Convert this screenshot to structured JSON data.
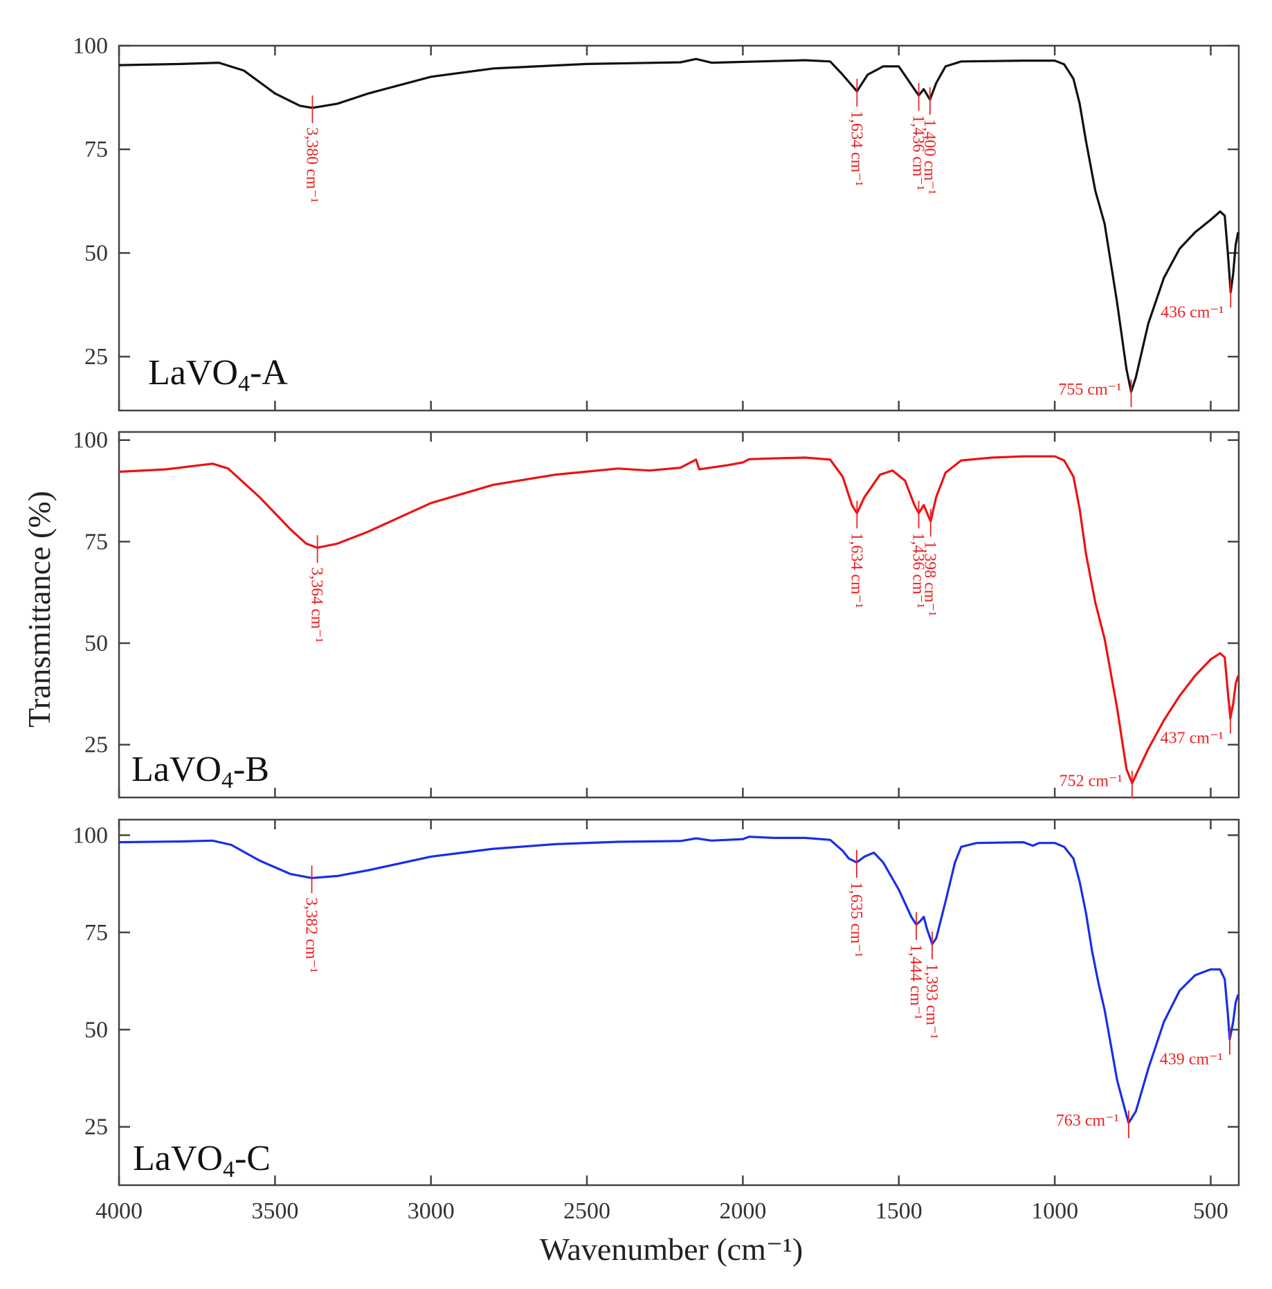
{
  "chart_data": {
    "type": "line",
    "xlabel": "Wavenumber (cm⁻¹)",
    "ylabel": "Transmittance (%)",
    "xlim": [
      4000,
      410
    ],
    "x_ticks": [
      "4000",
      "3500",
      "3000",
      "2500",
      "2000",
      "1500",
      "1000",
      "500"
    ],
    "x_tick_values": [
      4000,
      3500,
      3000,
      2500,
      2000,
      1500,
      1000,
      500
    ],
    "peak_color": "#ee2222",
    "panels": [
      {
        "name": "LaVO₄-A",
        "label_main": "LaVO",
        "label_sub": "4",
        "label_suffix": "-A",
        "color": "#111111",
        "ylim": [
          12,
          100
        ],
        "y_ticks": [
          "100",
          "75",
          "50",
          "25"
        ],
        "y_tick_values": [
          100,
          75,
          50,
          25
        ],
        "baseline": 96,
        "points": [
          [
            4000,
            95.3
          ],
          [
            3800,
            95.6
          ],
          [
            3680,
            95.9
          ],
          [
            3600,
            94
          ],
          [
            3500,
            88.5
          ],
          [
            3420,
            85.5
          ],
          [
            3380,
            85
          ],
          [
            3300,
            86
          ],
          [
            3200,
            88.5
          ],
          [
            3000,
            92.5
          ],
          [
            2800,
            94.5
          ],
          [
            2500,
            95.6
          ],
          [
            2200,
            96
          ],
          [
            2150,
            96.8
          ],
          [
            2100,
            95.9
          ],
          [
            2050,
            96
          ],
          [
            2000,
            96.1
          ],
          [
            1900,
            96.3
          ],
          [
            1800,
            96.5
          ],
          [
            1720,
            96.2
          ],
          [
            1680,
            93
          ],
          [
            1634,
            89
          ],
          [
            1600,
            93
          ],
          [
            1550,
            95
          ],
          [
            1500,
            95
          ],
          [
            1450,
            89.5
          ],
          [
            1436,
            88
          ],
          [
            1420,
            89.5
          ],
          [
            1400,
            87
          ],
          [
            1380,
            91
          ],
          [
            1350,
            95
          ],
          [
            1300,
            96.2
          ],
          [
            1100,
            96.4
          ],
          [
            1000,
            96.4
          ],
          [
            970,
            95.5
          ],
          [
            940,
            92
          ],
          [
            920,
            86
          ],
          [
            900,
            77
          ],
          [
            870,
            65
          ],
          [
            840,
            57
          ],
          [
            800,
            38
          ],
          [
            770,
            22
          ],
          [
            755,
            16.5
          ],
          [
            740,
            20
          ],
          [
            700,
            33
          ],
          [
            650,
            44
          ],
          [
            600,
            51
          ],
          [
            550,
            55
          ],
          [
            500,
            58
          ],
          [
            470,
            60
          ],
          [
            455,
            59
          ],
          [
            445,
            50
          ],
          [
            436,
            40.5
          ],
          [
            428,
            45
          ],
          [
            420,
            52
          ],
          [
            412,
            55
          ]
        ],
        "peaks": [
          {
            "label": "3,380 cm⁻¹",
            "x": 3380,
            "y": 85,
            "vertical": true
          },
          {
            "label": "1,634 cm⁻¹",
            "x": 1634,
            "y": 89,
            "vertical": true
          },
          {
            "label": "1,436 cm⁻¹",
            "x": 1436,
            "y": 88,
            "vertical": true
          },
          {
            "label": "1,400 cm⁻¹",
            "x": 1400,
            "y": 87,
            "vertical": true
          },
          {
            "label": "755 cm⁻¹",
            "x": 755,
            "y": 16.5,
            "vertical": false
          },
          {
            "label": "436 cm⁻¹",
            "x": 436,
            "y": 40.5,
            "vertical": false
          }
        ]
      },
      {
        "name": "LaVO₄-B",
        "label_main": "LaVO",
        "label_sub": "4",
        "label_suffix": "-B",
        "color": "#ee1111",
        "ylim": [
          12,
          102
        ],
        "y_ticks": [
          "100",
          "75",
          "50",
          "25"
        ],
        "y_tick_values": [
          100,
          75,
          50,
          25
        ],
        "baseline": 95,
        "points": [
          [
            4000,
            92.2
          ],
          [
            3850,
            92.8
          ],
          [
            3700,
            94.2
          ],
          [
            3650,
            93
          ],
          [
            3550,
            86
          ],
          [
            3450,
            78
          ],
          [
            3400,
            74.5
          ],
          [
            3364,
            73.5
          ],
          [
            3300,
            74.5
          ],
          [
            3200,
            77.5
          ],
          [
            3000,
            84.5
          ],
          [
            2800,
            89
          ],
          [
            2600,
            91.5
          ],
          [
            2400,
            93
          ],
          [
            2300,
            92.5
          ],
          [
            2200,
            93.2
          ],
          [
            2150,
            95.2
          ],
          [
            2140,
            92.8
          ],
          [
            2050,
            93.8
          ],
          [
            2000,
            94.5
          ],
          [
            1980,
            95.3
          ],
          [
            1900,
            95.5
          ],
          [
            1800,
            95.7
          ],
          [
            1720,
            95.2
          ],
          [
            1680,
            91
          ],
          [
            1650,
            84
          ],
          [
            1634,
            82
          ],
          [
            1610,
            86
          ],
          [
            1560,
            91.5
          ],
          [
            1520,
            92.5
          ],
          [
            1480,
            90
          ],
          [
            1450,
            84
          ],
          [
            1436,
            82
          ],
          [
            1420,
            84
          ],
          [
            1398,
            80
          ],
          [
            1380,
            86
          ],
          [
            1350,
            92
          ],
          [
            1300,
            95
          ],
          [
            1200,
            95.7
          ],
          [
            1100,
            96
          ],
          [
            1000,
            96
          ],
          [
            970,
            95
          ],
          [
            940,
            91
          ],
          [
            920,
            83
          ],
          [
            900,
            72
          ],
          [
            870,
            60
          ],
          [
            840,
            51
          ],
          [
            800,
            34
          ],
          [
            770,
            19
          ],
          [
            752,
            15.5
          ],
          [
            740,
            17.5
          ],
          [
            700,
            24
          ],
          [
            650,
            31
          ],
          [
            600,
            37
          ],
          [
            550,
            42
          ],
          [
            500,
            46
          ],
          [
            470,
            47.5
          ],
          [
            455,
            46.5
          ],
          [
            445,
            38
          ],
          [
            437,
            31.5
          ],
          [
            428,
            35
          ],
          [
            420,
            40
          ],
          [
            412,
            42
          ]
        ],
        "peaks": [
          {
            "label": "3,364 cm⁻¹",
            "x": 3364,
            "y": 73.5,
            "vertical": true
          },
          {
            "label": "1,634 cm⁻¹",
            "x": 1634,
            "y": 82,
            "vertical": true
          },
          {
            "label": "1,436 cm⁻¹",
            "x": 1436,
            "y": 82,
            "vertical": true
          },
          {
            "label": "1,398 cm⁻¹",
            "x": 1398,
            "y": 80,
            "vertical": true
          },
          {
            "label": "752 cm⁻¹",
            "x": 752,
            "y": 15.5,
            "vertical": false
          },
          {
            "label": "437 cm⁻¹",
            "x": 437,
            "y": 31.5,
            "vertical": false
          }
        ]
      },
      {
        "name": "LaVO₄-C",
        "label_main": "LaVO",
        "label_sub": "4",
        "label_suffix": "-C",
        "color": "#1a2ee6",
        "ylim": [
          10,
          104
        ],
        "y_ticks": [
          "100",
          "75",
          "50",
          "25"
        ],
        "y_tick_values": [
          100,
          75,
          50,
          25
        ],
        "baseline": 98,
        "points": [
          [
            4000,
            98.2
          ],
          [
            3800,
            98.4
          ],
          [
            3700,
            98.6
          ],
          [
            3640,
            97.5
          ],
          [
            3550,
            93.5
          ],
          [
            3450,
            90
          ],
          [
            3382,
            89
          ],
          [
            3300,
            89.5
          ],
          [
            3200,
            91
          ],
          [
            3000,
            94.5
          ],
          [
            2800,
            96.5
          ],
          [
            2600,
            97.7
          ],
          [
            2400,
            98.3
          ],
          [
            2200,
            98.5
          ],
          [
            2150,
            99.2
          ],
          [
            2100,
            98.6
          ],
          [
            2000,
            99
          ],
          [
            1980,
            99.6
          ],
          [
            1900,
            99.3
          ],
          [
            1800,
            99.3
          ],
          [
            1720,
            98.8
          ],
          [
            1680,
            96
          ],
          [
            1660,
            94
          ],
          [
            1635,
            93
          ],
          [
            1610,
            94.5
          ],
          [
            1580,
            95.5
          ],
          [
            1550,
            93
          ],
          [
            1500,
            86
          ],
          [
            1460,
            79
          ],
          [
            1444,
            77
          ],
          [
            1430,
            78
          ],
          [
            1420,
            79
          ],
          [
            1410,
            76
          ],
          [
            1393,
            72
          ],
          [
            1380,
            73.5
          ],
          [
            1350,
            83
          ],
          [
            1320,
            93
          ],
          [
            1300,
            97
          ],
          [
            1250,
            98
          ],
          [
            1100,
            98.2
          ],
          [
            1070,
            97.3
          ],
          [
            1050,
            98
          ],
          [
            1000,
            98
          ],
          [
            970,
            97
          ],
          [
            940,
            94
          ],
          [
            920,
            88
          ],
          [
            900,
            80
          ],
          [
            880,
            70
          ],
          [
            860,
            62
          ],
          [
            840,
            55
          ],
          [
            800,
            37
          ],
          [
            770,
            28
          ],
          [
            763,
            26
          ],
          [
            740,
            29
          ],
          [
            700,
            40
          ],
          [
            650,
            52
          ],
          [
            600,
            60
          ],
          [
            550,
            64
          ],
          [
            500,
            65.5
          ],
          [
            470,
            65.5
          ],
          [
            455,
            63
          ],
          [
            445,
            54
          ],
          [
            439,
            47.5
          ],
          [
            428,
            52
          ],
          [
            420,
            57
          ],
          [
            412,
            59
          ]
        ],
        "peaks": [
          {
            "label": "3,382 cm⁻¹",
            "x": 3382,
            "y": 89,
            "vertical": true
          },
          {
            "label": "1,635 cm⁻¹",
            "x": 1635,
            "y": 93,
            "vertical": true
          },
          {
            "label": "1,444 cm⁻¹",
            "x": 1444,
            "y": 77,
            "vertical": true
          },
          {
            "label": "1,393 cm⁻¹",
            "x": 1393,
            "y": 72,
            "vertical": true
          },
          {
            "label": "763 cm⁻¹",
            "x": 763,
            "y": 26,
            "vertical": false
          },
          {
            "label": "439 cm⁻¹",
            "x": 439,
            "y": 47.5,
            "vertical": false
          }
        ]
      }
    ]
  }
}
